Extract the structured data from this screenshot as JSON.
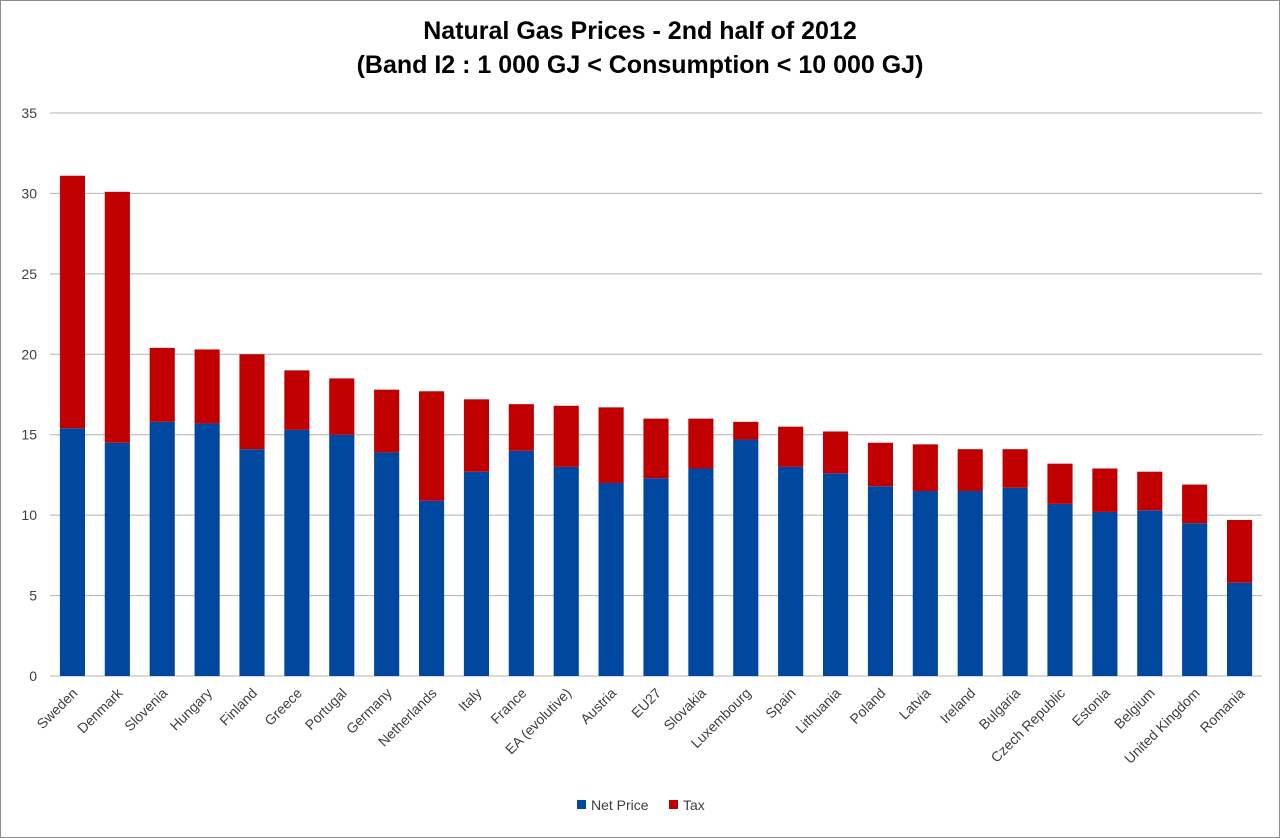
{
  "chart_data": {
    "type": "bar",
    "stacked": true,
    "title": "Natural Gas Prices - 2nd half of 2012",
    "subtitle": "(Band I2 : 1 000 GJ < Consumption < 10 000 GJ)",
    "xlabel": "",
    "ylabel": "",
    "ylim": [
      0,
      35
    ],
    "yticks": [
      0,
      5,
      10,
      15,
      20,
      25,
      30,
      35
    ],
    "grid": true,
    "legend_position": "bottom",
    "categories": [
      "Sweden",
      "Denmark",
      "Slovenia",
      "Hungary",
      "Finland",
      "Greece",
      "Portugal",
      "Germany",
      "Netherlands",
      "Italy",
      "France",
      "EA (evolutive)",
      "Austria",
      "EU27",
      "Slovakia",
      "Luxembourg",
      "Spain",
      "Lithuania",
      "Poland",
      "Latvia",
      "Ireland",
      "Bulgaria",
      "Czech Republic",
      "Estonia",
      "Belgium",
      "United Kingdom",
      "Romania"
    ],
    "series": [
      {
        "name": "Net Price",
        "color": "#0047a0",
        "values": [
          15.4,
          14.5,
          15.8,
          15.7,
          14.1,
          15.3,
          15.0,
          13.9,
          10.9,
          12.7,
          14.0,
          13.0,
          12.0,
          12.3,
          12.9,
          14.7,
          13.0,
          12.6,
          11.8,
          11.5,
          11.5,
          11.7,
          10.7,
          10.2,
          10.3,
          9.5,
          5.8
        ]
      },
      {
        "name": "Tax",
        "color": "#c00000",
        "values": [
          15.7,
          15.6,
          4.6,
          4.6,
          5.9,
          3.7,
          3.5,
          3.9,
          6.8,
          4.5,
          2.9,
          3.8,
          4.7,
          3.7,
          3.1,
          1.1,
          2.5,
          2.6,
          2.7,
          2.9,
          2.6,
          2.4,
          2.5,
          2.7,
          2.4,
          2.4,
          3.9
        ]
      }
    ]
  }
}
